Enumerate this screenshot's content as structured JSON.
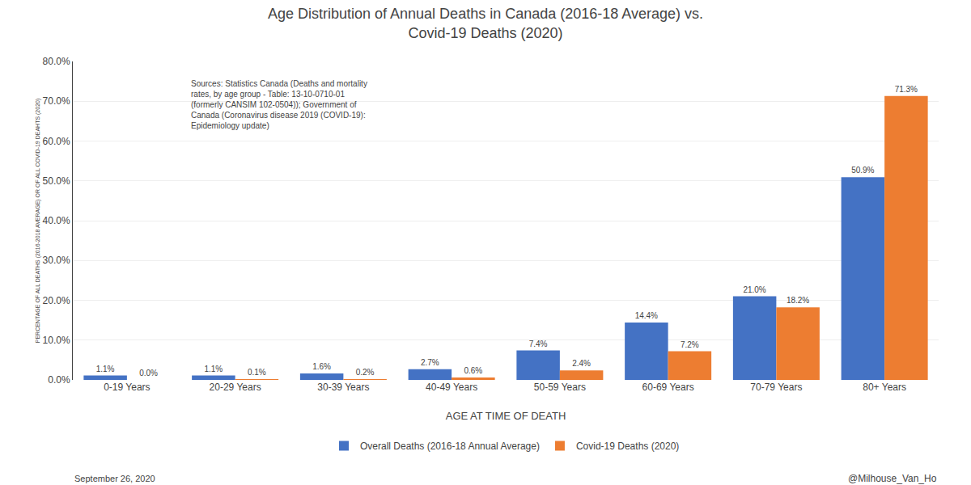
{
  "chart_data": {
    "type": "bar",
    "title": "Age Distribution of Annual Deaths in Canada (2016-18 Average) vs.\nCovid-19 Deaths (2020)",
    "xlabel": "AGE AT TIME OF DEATH",
    "ylabel": "PERCENTAGE OF ALL DEATHS (2016-2018 AVERAGE) OR OF ALL COVID-19 DEAHTS (2020)",
    "categories": [
      "0-19 Years",
      "20-29 Years",
      "30-39 Years",
      "40-49 Years",
      "50-59 Years",
      "60-69 Years",
      "70-79 Years",
      "80+ Years"
    ],
    "series": [
      {
        "name": "Overall Deaths (2016-18 Annual Average)",
        "color": "#4472C4",
        "values": [
          1.1,
          1.1,
          1.6,
          2.7,
          7.4,
          14.4,
          21.0,
          50.9
        ],
        "value_labels": [
          "1.1%",
          "1.1%",
          "1.6%",
          "2.7%",
          "7.4%",
          "14.4%",
          "21.0%",
          "50.9%"
        ]
      },
      {
        "name": "Covid-19 Deaths (2020)",
        "color": "#ED7D31",
        "values": [
          0.0,
          0.1,
          0.2,
          0.6,
          2.4,
          7.2,
          18.2,
          71.3
        ],
        "value_labels": [
          "0.0%",
          "0.1%",
          "0.2%",
          "0.6%",
          "2.4%",
          "7.2%",
          "18.2%",
          "71.3%"
        ]
      }
    ],
    "ylim": [
      0,
      80
    ],
    "yticks": [
      {
        "value": 0,
        "label": "0.0%"
      },
      {
        "value": 10,
        "label": "10.0%"
      },
      {
        "value": 20,
        "label": "20.0%"
      },
      {
        "value": 30,
        "label": "30.0%"
      },
      {
        "value": 40,
        "label": "40.0%"
      },
      {
        "value": 50,
        "label": "50.0%"
      },
      {
        "value": 60,
        "label": "60.0%"
      },
      {
        "value": 70,
        "label": "70.0%"
      },
      {
        "value": 80,
        "label": "80.0%"
      }
    ],
    "grid": true,
    "legend": "bottom",
    "data_labels": true,
    "annotations": [
      "Sources: Statistics Canada (Deaths and mortality\nrates, by age group - Table: 13-10-0710-01\n(formerly CANSIM 102-0504)); Government of\nCanada (Coronavirus disease 2019 (COVID-19):\nEpidemiology update)",
      "September 26, 2020",
      "@Milhouse_Van_Ho"
    ]
  }
}
